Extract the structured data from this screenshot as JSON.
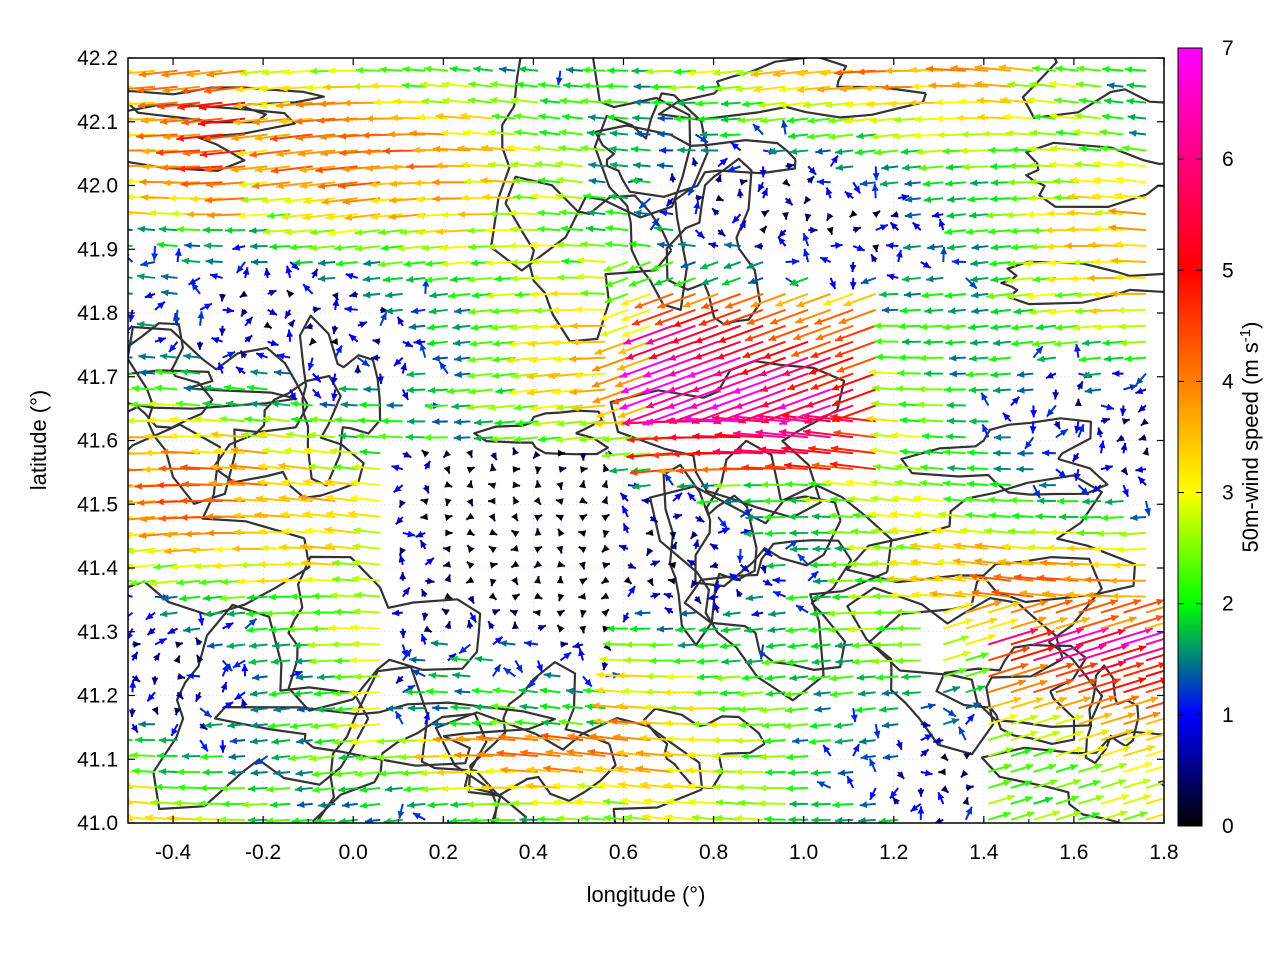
{
  "chart_data": {
    "type": "vector-field",
    "title": "",
    "xlabel": "longitude (°)",
    "ylabel": "latitude (°)",
    "xlim": [
      -0.5,
      1.8
    ],
    "ylim": [
      41.0,
      42.2
    ],
    "xticks": [
      "-0.4",
      "-0.2",
      "0.0",
      "0.2",
      "0.4",
      "0.6",
      "0.8",
      "1.0",
      "1.2",
      "1.4",
      "1.6",
      "1.8"
    ],
    "xtick_values": [
      -0.4,
      -0.2,
      0.0,
      0.2,
      0.4,
      0.6,
      0.8,
      1.0,
      1.2,
      1.4,
      1.6,
      1.8
    ],
    "yticks": [
      "41.0",
      "41.1",
      "41.2",
      "41.3",
      "41.4",
      "41.5",
      "41.6",
      "41.7",
      "41.8",
      "41.9",
      "42.0",
      "42.1",
      "42.2"
    ],
    "ytick_values": [
      41.0,
      41.1,
      41.2,
      41.3,
      41.4,
      41.5,
      41.6,
      41.7,
      41.8,
      41.9,
      42.0,
      42.1,
      42.2
    ],
    "grid": true,
    "colorbar": {
      "label_prefix": "50m-wind speed (m s",
      "label_sup": "-1",
      "label_suffix": ")",
      "range": [
        0,
        7
      ],
      "ticks": [
        "0",
        "1",
        "2",
        "3",
        "4",
        "5",
        "6",
        "7"
      ],
      "tick_values": [
        0,
        1,
        2,
        3,
        4,
        5,
        6,
        7
      ],
      "palette": [
        "#000000",
        "#0000ff",
        "#00ff00",
        "#ffff00",
        "#ff8000",
        "#ff0000",
        "#ff00ff"
      ]
    },
    "contour_color": "#333333"
  }
}
